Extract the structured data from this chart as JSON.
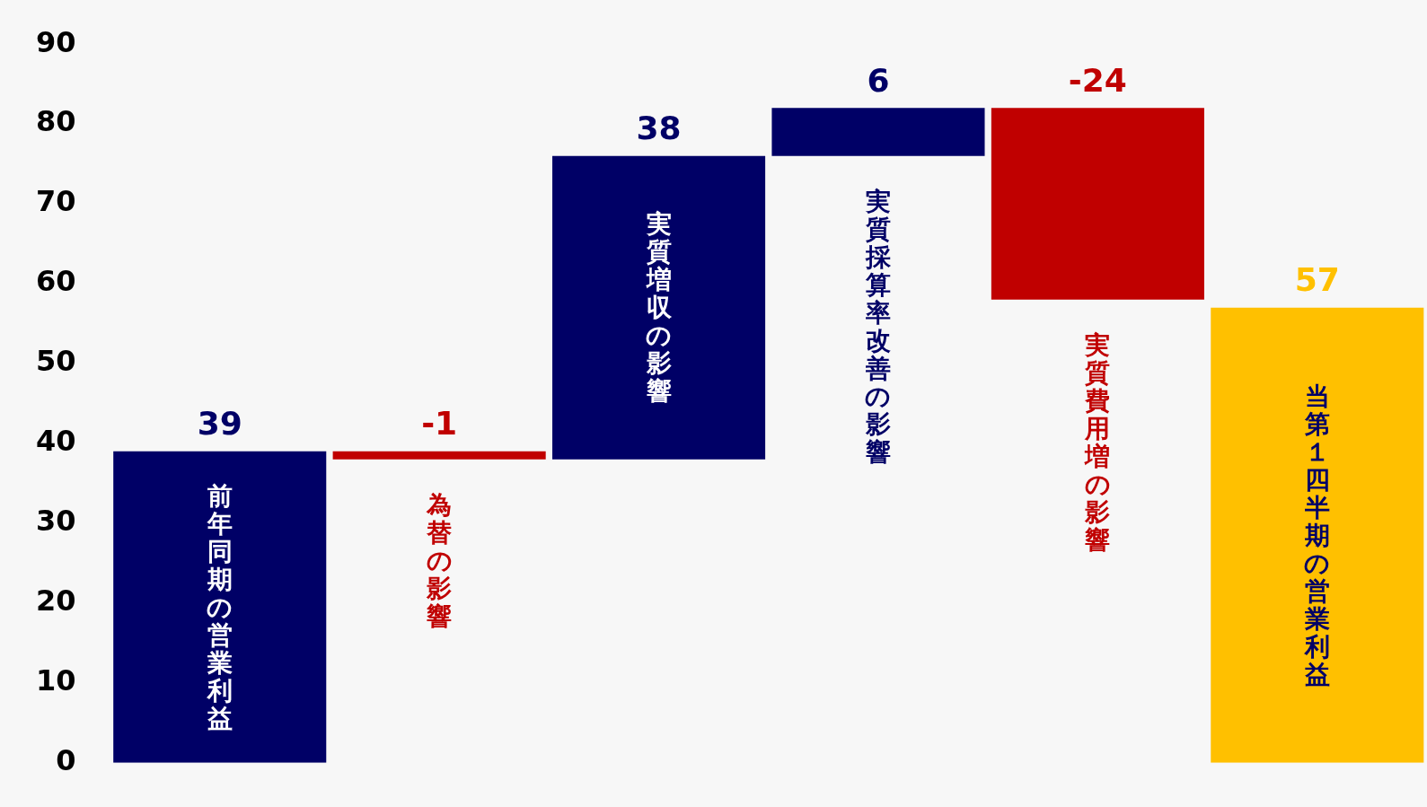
{
  "chart_data": {
    "type": "bar",
    "categories": [
      "前年同期の営業利益",
      "為替の影響",
      "実質増収の影響",
      "実質採算率改善の影響",
      "実質費用増の影響",
      "当第１四半期の営業利益"
    ],
    "values": [
      39,
      -1,
      38,
      6,
      -24,
      57
    ],
    "base": [
      0,
      39,
      38,
      76,
      82,
      0
    ],
    "colors": [
      "#000066",
      "#c00000",
      "#000066",
      "#000066",
      "#c00000",
      "#ffc000"
    ],
    "ylim": [
      0,
      90
    ],
    "yticks": [
      0,
      10,
      20,
      30,
      40,
      50,
      60,
      70,
      80,
      90
    ],
    "grid": false,
    "legend": false,
    "tick_labels": "y",
    "data_labels": true
  }
}
